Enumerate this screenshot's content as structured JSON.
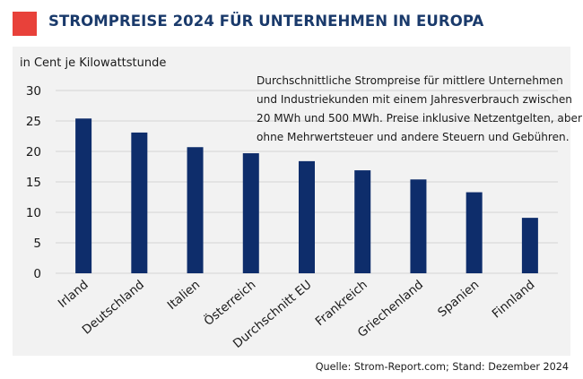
{
  "title": "STROMPREISE 2024 FÜR UNTERNEHMEN IN EUROPA",
  "colors": {
    "accent": "#e8413a",
    "title": "#1a3a6b",
    "bar": "#0e2d6b",
    "grid": "#d4d4d4",
    "panel": "#f2f2f2"
  },
  "note_lines": [
    "Durchschnittliche Strompreise für mittlere Unternehmen",
    "und Industriekunden mit einem Jahresverbrauch zwischen",
    "20 MWh und 500 MWh. Preise inklusive Netzentgelten, aber",
    "ohne Mehrwertsteuer und andere Steuern und Gebühren."
  ],
  "source": "Quelle: Strom-Report.com; Stand: Dezember 2024",
  "chart_data": {
    "type": "bar",
    "ylabel": "in Cent je Kilowattstunde",
    "categories": [
      "Irland",
      "Deutschland",
      "Italien",
      "Österreich",
      "Durchschnitt EU",
      "Frankreich",
      "Griechenland",
      "Spanien",
      "Finnland"
    ],
    "values": [
      25.4,
      23.1,
      20.7,
      19.7,
      18.4,
      16.9,
      15.4,
      13.3,
      9.1
    ],
    "ylim": [
      0,
      30
    ],
    "yticks": [
      0,
      5,
      10,
      15,
      20,
      25,
      30
    ],
    "grid": true,
    "legend": "none"
  }
}
